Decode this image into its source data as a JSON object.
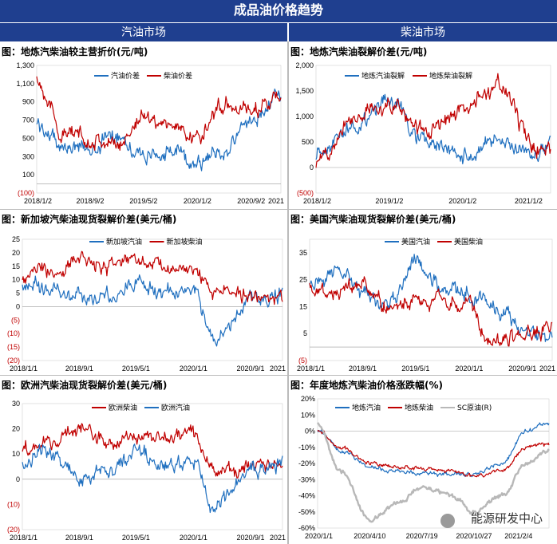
{
  "header": {
    "title": "成品油价格趋势"
  },
  "sections": {
    "left": "汽油市场",
    "right": "柴油市场"
  },
  "watermark": "能源研发中心",
  "chart_data": [
    {
      "id": "c1",
      "type": "line",
      "title": "图：地炼汽柴油较主营折价(元/吨)",
      "ylim": [
        -100,
        1300
      ],
      "yticks": [
        -100,
        100,
        300,
        500,
        700,
        900,
        1100,
        1300
      ],
      "ytick_labels": [
        "(100)",
        "100",
        "300",
        "500",
        "700",
        "900",
        "1,100",
        "1,300"
      ],
      "x": [
        "2018-01-02",
        "2018-05-01",
        "2018-09-02",
        "2019-01-01",
        "2019-05-02",
        "2019-09-01",
        "2020-01-02",
        "2020-05-01",
        "2020-09-02",
        "2021-01-15"
      ],
      "xtick_labels": [
        "2018/1/2",
        "2018/9/2",
        "2019/5/2",
        "2020/1/2",
        "2020/9/2",
        "2021"
      ],
      "series": [
        {
          "name": "汽油价差",
          "color": "#1f6fbf",
          "values": [
            650,
            420,
            380,
            560,
            300,
            350,
            250,
            350,
            700,
            1000
          ]
        },
        {
          "name": "柴油价差",
          "color": "#c00000",
          "values": [
            1150,
            550,
            500,
            420,
            750,
            650,
            500,
            900,
            800,
            950
          ]
        }
      ]
    },
    {
      "id": "c2",
      "type": "line",
      "title": "图：地炼汽柴油裂解价差(元/吨)",
      "ylim": [
        -500,
        2000
      ],
      "yticks": [
        -500,
        0,
        500,
        1000,
        1500,
        2000
      ],
      "ytick_labels": [
        "(500)",
        "0",
        "500",
        "1,000",
        "1,500",
        "2,000"
      ],
      "x": [
        "2018-01-02",
        "2018-07-01",
        "2019-01-02",
        "2019-07-01",
        "2020-01-02",
        "2020-07-01",
        "2021-01-02",
        "2021-03-15"
      ],
      "xtick_labels": [
        "2018/1/2",
        "2019/1/2",
        "2020/1/2",
        "2021/1/2"
      ],
      "series": [
        {
          "name": "地炼汽油裂解",
          "color": "#1f6fbf",
          "values": [
            300,
            800,
            1300,
            500,
            200,
            500,
            200,
            600
          ]
        },
        {
          "name": "地炼柴油裂解",
          "color": "#c00000",
          "values": [
            100,
            1000,
            1250,
            700,
            1100,
            1600,
            400,
            300
          ]
        }
      ]
    },
    {
      "id": "c3",
      "type": "line",
      "title": "图：新加坡汽柴油现货裂解价差(美元/桶)",
      "ylim": [
        -20,
        25
      ],
      "yticks": [
        -20,
        -15,
        -10,
        -5,
        0,
        5,
        10,
        15,
        20,
        25
      ],
      "ytick_labels": [
        "(20)",
        "(15)",
        "(10)",
        "(5)",
        "0",
        "5",
        "10",
        "15",
        "20",
        "25"
      ],
      "x": [
        "2018-01-01",
        "2018-05-01",
        "2018-09-01",
        "2019-01-01",
        "2019-05-01",
        "2019-09-01",
        "2020-01-01",
        "2020-04-01",
        "2020-09-01",
        "2021-01-15"
      ],
      "xtick_labels": [
        "2018/1/1",
        "2018/9/1",
        "2019/5/1",
        "2020/1/1",
        "2020/9/1",
        "2021"
      ],
      "series": [
        {
          "name": "新加坡汽油",
          "color": "#1f6fbf",
          "values": [
            8,
            6,
            3,
            4,
            9,
            5,
            6,
            -13,
            3,
            5
          ]
        },
        {
          "name": "新加坡柴油",
          "color": "#c00000",
          "values": [
            11,
            13,
            18,
            14,
            17,
            15,
            13,
            5,
            4,
            3
          ]
        }
      ]
    },
    {
      "id": "c4",
      "type": "line",
      "title": "图：美国汽柴油现货裂解价差(美元/桶)",
      "ylim": [
        -5,
        40
      ],
      "yticks": [
        -5,
        5,
        15,
        25,
        35
      ],
      "ytick_labels": [
        "(5)",
        "5",
        "15",
        "25",
        "35"
      ],
      "x": [
        "2018-01-01",
        "2018-05-01",
        "2018-09-01",
        "2019-01-01",
        "2019-05-01",
        "2019-09-01",
        "2020-01-01",
        "2020-04-01",
        "2020-09-01",
        "2021-01-15"
      ],
      "xtick_labels": [
        "2018/1/1",
        "2018/9/1",
        "2019/5/1",
        "2020/1/1",
        "2020/9/1",
        "2021"
      ],
      "series": [
        {
          "name": "美国汽油",
          "color": "#1f6fbf",
          "values": [
            22,
            28,
            20,
            15,
            33,
            22,
            20,
            15,
            8,
            3
          ]
        },
        {
          "name": "美国柴油",
          "color": "#c00000",
          "values": [
            22,
            19,
            23,
            15,
            18,
            17,
            16,
            2,
            5,
            7
          ]
        }
      ]
    },
    {
      "id": "c5",
      "type": "line",
      "title": "图：欧洲汽柴油现货裂解价差(美元/桶)",
      "ylim": [
        -20,
        30
      ],
      "yticks": [
        -20,
        -10,
        0,
        10,
        20,
        30
      ],
      "ytick_labels": [
        "(20)",
        "(10)",
        "0",
        "10",
        "20",
        "30"
      ],
      "x": [
        "2018-01-01",
        "2018-05-01",
        "2018-09-01",
        "2019-01-01",
        "2019-05-01",
        "2019-09-01",
        "2020-01-01",
        "2020-04-01",
        "2020-09-01",
        "2021-01-15"
      ],
      "xtick_labels": [
        "2018/1/1",
        "2018/9/1",
        "2019/5/1",
        "2020/1/1",
        "2020/9/1",
        "2021"
      ],
      "series": [
        {
          "name": "欧洲柴油",
          "color": "#c00000",
          "values": [
            13,
            14,
            20,
            15,
            16,
            16,
            18,
            4,
            5,
            5
          ]
        },
        {
          "name": "欧洲汽油",
          "color": "#1f6fbf",
          "values": [
            8,
            10,
            0,
            3,
            10,
            5,
            8,
            -12,
            3,
            6
          ]
        }
      ]
    },
    {
      "id": "c6",
      "type": "line",
      "title": "图：年度地炼汽柴油价格涨跌幅(%)",
      "ylim": [
        -60,
        20
      ],
      "yticks": [
        -60,
        -50,
        -40,
        -30,
        -20,
        -10,
        0,
        10,
        20
      ],
      "ytick_labels": [
        "-60%",
        "-50%",
        "-40%",
        "-30%",
        "-20%",
        "-10%",
        "0%",
        "10%",
        "20%"
      ],
      "x": [
        "2020-01-01",
        "2020-02-15",
        "2020-04-10",
        "2020-06-01",
        "2020-07-19",
        "2020-09-15",
        "2020-10-27",
        "2020-12-20",
        "2021-02-04",
        "2021-03-20"
      ],
      "xtick_labels": [
        "2020/1/1",
        "2020/4/10",
        "2020/7/19",
        "2020/10/27",
        "2021/2/4"
      ],
      "series": [
        {
          "name": "地炼汽油",
          "color": "#1f6fbf",
          "values": [
            0,
            -12,
            -22,
            -25,
            -26,
            -27,
            -27,
            -20,
            0,
            5
          ]
        },
        {
          "name": "地炼柴油",
          "color": "#c00000",
          "values": [
            0,
            -10,
            -20,
            -22,
            -23,
            -25,
            -28,
            -25,
            -10,
            -8
          ]
        },
        {
          "name": "SC原油(R)",
          "color": "#b8b8b8",
          "values": [
            5,
            -25,
            -55,
            -45,
            -35,
            -40,
            -50,
            -40,
            -20,
            -12
          ]
        }
      ]
    }
  ]
}
